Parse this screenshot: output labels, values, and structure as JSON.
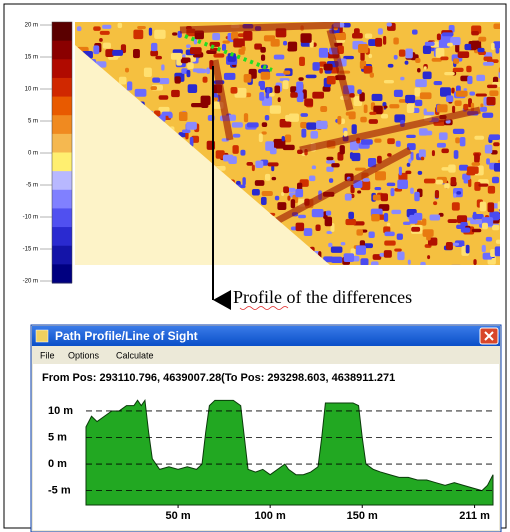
{
  "colorbar": {
    "ylim": [
      -20,
      20
    ],
    "ticks": [
      {
        "value": 20,
        "label": "20 m"
      },
      {
        "value": 15,
        "label": "15 m"
      },
      {
        "value": 10,
        "label": "10 m"
      },
      {
        "value": 5,
        "label": "5 m"
      },
      {
        "value": 0,
        "label": "0 m"
      },
      {
        "value": -5,
        "label": "-5 m"
      },
      {
        "value": -10,
        "label": "-10 m"
      },
      {
        "value": -15,
        "label": "-15 m"
      },
      {
        "value": -20,
        "label": "-20 m"
      }
    ],
    "colors": [
      "#5a0000",
      "#8a0000",
      "#b00a00",
      "#d02800",
      "#e85a00",
      "#f08a20",
      "#f5b850",
      "#ffef70",
      "#b8b8ff",
      "#8080ff",
      "#5050f0",
      "#2a2ad0",
      "#1414a8",
      "#000080"
    ]
  },
  "annotation": "Profile of the differences",
  "window": {
    "title": "Path Profile/Line of Sight",
    "menu": [
      "File",
      "Options",
      "Calculate"
    ],
    "positions": "From Pos: 293110.796, 4639007.28(To Pos: 293298.603, 4638911.271"
  },
  "chart_data": {
    "type": "area",
    "color": "#22a822",
    "x": [
      0,
      3,
      6,
      10,
      14,
      18,
      22,
      26,
      28,
      30,
      32,
      34,
      36,
      40,
      45,
      50,
      55,
      60,
      63,
      65,
      67,
      70,
      75,
      80,
      84,
      86,
      88,
      92,
      96,
      100,
      104,
      108,
      110,
      114,
      118,
      122,
      126,
      128,
      130,
      135,
      140,
      145,
      148,
      150,
      152,
      156,
      160,
      165,
      170,
      175,
      180,
      185,
      190,
      195,
      200,
      205,
      210,
      215,
      218,
      221
    ],
    "values": [
      7,
      9,
      8,
      9,
      10,
      10,
      11,
      11,
      12,
      11,
      12,
      6,
      1,
      -1,
      -0.5,
      -1,
      -0.5,
      -1,
      0,
      6,
      11,
      12,
      12,
      12,
      11,
      5,
      -1,
      -1.5,
      -1,
      -2,
      -1,
      0,
      -1,
      -2,
      -2,
      -1.5,
      -0.5,
      5,
      11.5,
      11.5,
      11.5,
      11.5,
      11,
      5,
      0,
      -1,
      -1.5,
      -2,
      -2.5,
      -2.5,
      -3,
      -3,
      -3.5,
      -4,
      -3.5,
      -4,
      -4.5,
      -5,
      -4,
      -2
    ],
    "xlim": [
      0,
      221
    ],
    "ylim": [
      -7.7,
      13
    ],
    "xticks": [
      {
        "value": 50,
        "label": "50 m"
      },
      {
        "value": 100,
        "label": "100 m"
      },
      {
        "value": 150,
        "label": "150 m"
      },
      {
        "value": 211,
        "label": "211 m"
      }
    ],
    "yticks": [
      {
        "value": 10,
        "label": "10 m"
      },
      {
        "value": 5,
        "label": "5 m"
      },
      {
        "value": 0,
        "label": "0 m"
      },
      {
        "value": -5,
        "label": "-5 m"
      }
    ],
    "grid": true
  }
}
